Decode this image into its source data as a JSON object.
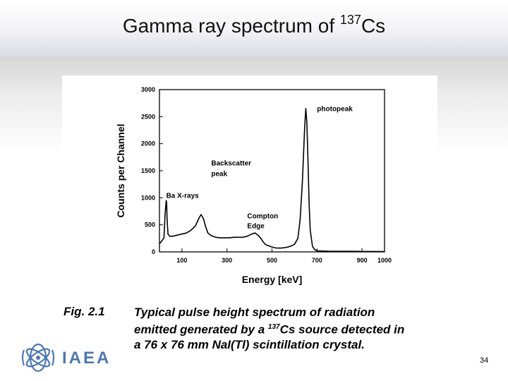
{
  "slide": {
    "title_prefix": "Gamma ray spectrum of",
    "title_superscript": "137",
    "title_element": "Cs",
    "page_number": "34",
    "logo_text": "IAEA",
    "logo_color": "#4a78b5"
  },
  "caption": {
    "label": "Fig. 2.1",
    "line1": "Typical pulse height spectrum of radiation",
    "line2_before": "emitted generated by a ",
    "line2_sup": "137",
    "line2_after": "Cs source detected in",
    "line3": "a 76 x 76 mm NaI(Tl) scintillation crystal."
  },
  "chart_data": {
    "type": "line",
    "title": "",
    "xlabel": "Energy [keV]",
    "ylabel": "Counts per Channel",
    "xlim": [
      0,
      1000
    ],
    "ylim": [
      0,
      3000
    ],
    "x_ticks": [
      100,
      300,
      500,
      700,
      900,
      1000
    ],
    "x_tick_labels": [
      "100",
      "300",
      "500",
      "700",
      "900",
      "1000"
    ],
    "y_ticks": [
      0,
      500,
      1000,
      1500,
      2000,
      2500,
      3000
    ],
    "y_tick_labels": [
      "0",
      "500",
      "1000",
      "1500",
      "2000",
      "2500",
      "3000"
    ],
    "grid": false,
    "line_color": "#000000",
    "series": [
      {
        "x": [
          0,
          10,
          20,
          25,
          30,
          32,
          34,
          38,
          45,
          60,
          80,
          100,
          120,
          140,
          160,
          175,
          185,
          195,
          205,
          215,
          230,
          250,
          270,
          290,
          310,
          330,
          350,
          370,
          390,
          410,
          425,
          440,
          450,
          460,
          470,
          480,
          500,
          520,
          540,
          560,
          580,
          600,
          615,
          625,
          635,
          645,
          650,
          655,
          660,
          665,
          670,
          680,
          690,
          700,
          720,
          750,
          800,
          850,
          900,
          950,
          1000
        ],
        "y": [
          150,
          200,
          260,
          700,
          950,
          900,
          600,
          330,
          290,
          290,
          310,
          330,
          350,
          400,
          480,
          620,
          690,
          620,
          470,
          350,
          300,
          270,
          260,
          260,
          260,
          270,
          270,
          270,
          290,
          330,
          350,
          300,
          250,
          190,
          140,
          120,
          90,
          70,
          70,
          80,
          100,
          140,
          250,
          600,
          1300,
          2300,
          2650,
          2400,
          1700,
          900,
          400,
          100,
          40,
          20,
          15,
          12,
          10,
          10,
          8,
          8,
          6
        ]
      }
    ],
    "annotations": [
      {
        "text": "photopeak",
        "x": 700,
        "y": 2600
      },
      {
        "text": "Backscatter",
        "x": 230,
        "y": 1600
      },
      {
        "text": "peak",
        "x": 230,
        "y": 1400
      },
      {
        "text": "Ba X-rays",
        "x": 30,
        "y": 1000
      },
      {
        "text": "Compton",
        "x": 390,
        "y": 620
      },
      {
        "text": "Edge",
        "x": 390,
        "y": 440
      }
    ]
  }
}
